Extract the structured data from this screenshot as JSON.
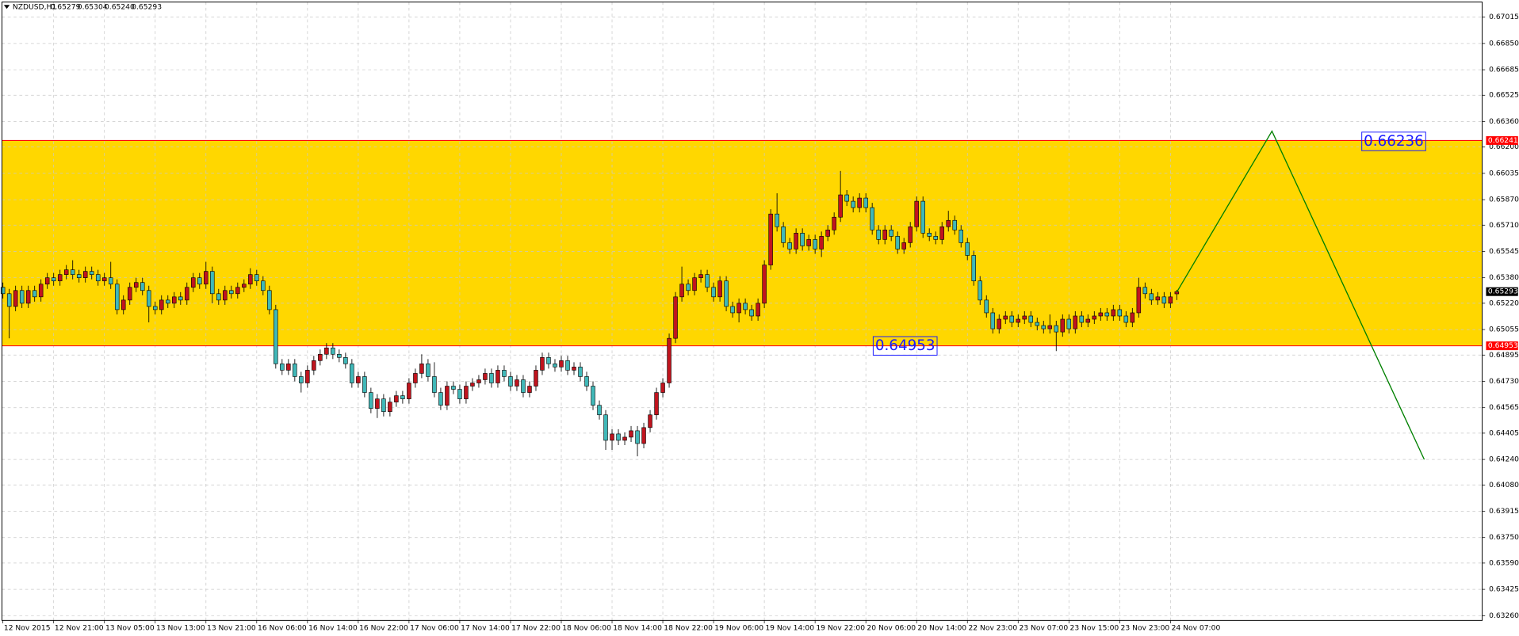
{
  "chart_data": {
    "type": "candlestick",
    "title": "NZDUSD,H1",
    "last_bar_labels": [
      "0.65279",
      "0.65304",
      "0.65240",
      "0.65293"
    ],
    "categories": [
      "12 Nov 2015",
      null,
      null,
      null,
      null,
      null,
      null,
      null,
      "12 Nov 21:00",
      null,
      null,
      null,
      null,
      null,
      null,
      null,
      "13 Nov 05:00",
      null,
      null,
      null,
      null,
      null,
      null,
      null,
      "13 Nov 13:00",
      null,
      null,
      null,
      null,
      null,
      null,
      null,
      "13 Nov 21:00",
      null,
      null,
      null,
      null,
      null,
      null,
      null,
      "16 Nov 06:00",
      null,
      null,
      null,
      null,
      null,
      null,
      null,
      "16 Nov 14:00",
      null,
      null,
      null,
      null,
      null,
      null,
      null,
      "16 Nov 22:00",
      null,
      null,
      null,
      null,
      null,
      null,
      null,
      "17 Nov 06:00",
      null,
      null,
      null,
      null,
      null,
      null,
      null,
      "17 Nov 14:00",
      null,
      null,
      null,
      null,
      null,
      null,
      null,
      "17 Nov 22:00",
      null,
      null,
      null,
      null,
      null,
      null,
      null,
      "18 Nov 06:00",
      null,
      null,
      null,
      null,
      null,
      null,
      null,
      "18 Nov 14:00",
      null,
      null,
      null,
      null,
      null,
      null,
      null,
      "18 Nov 22:00",
      null,
      null,
      null,
      null,
      null,
      null,
      null,
      "19 Nov 06:00",
      null,
      null,
      null,
      null,
      null,
      null,
      null,
      "19 Nov 14:00",
      null,
      null,
      null,
      null,
      null,
      null,
      null,
      "19 Nov 22:00",
      null,
      null,
      null,
      null,
      null,
      null,
      null,
      "20 Nov 06:00",
      null,
      null,
      null,
      null,
      null,
      null,
      null,
      "20 Nov 14:00",
      null,
      null,
      null,
      null,
      null,
      null,
      null,
      "22 Nov 23:00",
      null,
      null,
      null,
      null,
      null,
      null,
      null,
      "23 Nov 07:00",
      null,
      null,
      null,
      null,
      null,
      null,
      null,
      "23 Nov 15:00",
      null,
      null,
      null,
      null,
      null,
      null,
      null,
      "23 Nov 23:00",
      null,
      null,
      null,
      null,
      null,
      null,
      null,
      "24 Nov 07:00",
      null
    ],
    "candles": [
      [
        0.6532,
        0.6535,
        0.6525,
        0.6528
      ],
      [
        0.6528,
        0.6531,
        0.65,
        0.652
      ],
      [
        0.652,
        0.6533,
        0.6517,
        0.653
      ],
      [
        0.653,
        0.6533,
        0.6519,
        0.6522
      ],
      [
        0.6522,
        0.6533,
        0.6519,
        0.653
      ],
      [
        0.653,
        0.6533,
        0.6523,
        0.6526
      ],
      [
        0.6526,
        0.6537,
        0.6523,
        0.6534
      ],
      [
        0.6534,
        0.6541,
        0.6531,
        0.6538
      ],
      [
        0.6538,
        0.6541,
        0.6533,
        0.6536
      ],
      [
        0.6536,
        0.6543,
        0.6533,
        0.654
      ],
      [
        0.654,
        0.6546,
        0.6537,
        0.6543
      ],
      [
        0.6543,
        0.6549,
        0.6537,
        0.654
      ],
      [
        0.654,
        0.6543,
        0.6535,
        0.6538
      ],
      [
        0.6538,
        0.6545,
        0.6535,
        0.6542
      ],
      [
        0.6542,
        0.6545,
        0.6537,
        0.654
      ],
      [
        0.654,
        0.6543,
        0.6533,
        0.6536
      ],
      [
        0.6536,
        0.6541,
        0.6533,
        0.6538
      ],
      [
        0.6538,
        0.6548,
        0.6531,
        0.6534
      ],
      [
        0.6534,
        0.6537,
        0.6515,
        0.6518
      ],
      [
        0.6518,
        0.6527,
        0.6515,
        0.6524
      ],
      [
        0.6524,
        0.6535,
        0.6521,
        0.6532
      ],
      [
        0.6532,
        0.6538,
        0.6529,
        0.6535
      ],
      [
        0.6535,
        0.6538,
        0.6527,
        0.653
      ],
      [
        0.653,
        0.6533,
        0.651,
        0.652
      ],
      [
        0.652,
        0.6523,
        0.6515,
        0.6518
      ],
      [
        0.6518,
        0.6527,
        0.6515,
        0.6524
      ],
      [
        0.6524,
        0.6527,
        0.6519,
        0.6522
      ],
      [
        0.6522,
        0.6529,
        0.6519,
        0.6526
      ],
      [
        0.6526,
        0.6529,
        0.6521,
        0.6524
      ],
      [
        0.6524,
        0.6535,
        0.6521,
        0.6532
      ],
      [
        0.6532,
        0.6541,
        0.6529,
        0.6538
      ],
      [
        0.6538,
        0.6541,
        0.6531,
        0.6534
      ],
      [
        0.6534,
        0.6548,
        0.6531,
        0.6542
      ],
      [
        0.6542,
        0.6545,
        0.6522,
        0.6528
      ],
      [
        0.6528,
        0.6531,
        0.6521,
        0.6524
      ],
      [
        0.6524,
        0.6533,
        0.6521,
        0.653
      ],
      [
        0.653,
        0.6533,
        0.6525,
        0.6528
      ],
      [
        0.6528,
        0.6535,
        0.6525,
        0.6532
      ],
      [
        0.6532,
        0.6537,
        0.6529,
        0.6534
      ],
      [
        0.6534,
        0.6544,
        0.6531,
        0.654
      ],
      [
        0.654,
        0.6543,
        0.6533,
        0.6536
      ],
      [
        0.6536,
        0.6539,
        0.6527,
        0.653
      ],
      [
        0.653,
        0.6533,
        0.6515,
        0.6518
      ],
      [
        0.6518,
        0.6521,
        0.6481,
        0.6484
      ],
      [
        0.6484,
        0.6487,
        0.6477,
        0.648
      ],
      [
        0.648,
        0.6487,
        0.6477,
        0.6484
      ],
      [
        0.6484,
        0.6487,
        0.6473,
        0.6476
      ],
      [
        0.6476,
        0.6479,
        0.6466,
        0.6472
      ],
      [
        0.6472,
        0.6483,
        0.6469,
        0.648
      ],
      [
        0.648,
        0.6489,
        0.6477,
        0.6486
      ],
      [
        0.6486,
        0.6493,
        0.6483,
        0.649
      ],
      [
        0.649,
        0.6497,
        0.6487,
        0.6494
      ],
      [
        0.6494,
        0.6497,
        0.6487,
        0.649
      ],
      [
        0.649,
        0.6493,
        0.6485,
        0.6488
      ],
      [
        0.6488,
        0.6491,
        0.6481,
        0.6484
      ],
      [
        0.6484,
        0.6487,
        0.6469,
        0.6472
      ],
      [
        0.6472,
        0.6479,
        0.6469,
        0.6476
      ],
      [
        0.6476,
        0.6479,
        0.6463,
        0.6466
      ],
      [
        0.6466,
        0.6469,
        0.6453,
        0.6456
      ],
      [
        0.6456,
        0.6465,
        0.645,
        0.6462
      ],
      [
        0.6462,
        0.6465,
        0.6451,
        0.6454
      ],
      [
        0.6454,
        0.6463,
        0.6451,
        0.646
      ],
      [
        0.646,
        0.6467,
        0.6457,
        0.6464
      ],
      [
        0.6464,
        0.6467,
        0.6459,
        0.6462
      ],
      [
        0.6462,
        0.6475,
        0.6459,
        0.6472
      ],
      [
        0.6472,
        0.6481,
        0.6469,
        0.6478
      ],
      [
        0.6478,
        0.649,
        0.6475,
        0.6484
      ],
      [
        0.6484,
        0.6487,
        0.6473,
        0.6476
      ],
      [
        0.6476,
        0.6485,
        0.6463,
        0.6466
      ],
      [
        0.6466,
        0.6469,
        0.6455,
        0.6458
      ],
      [
        0.6458,
        0.6473,
        0.6455,
        0.647
      ],
      [
        0.647,
        0.6473,
        0.6465,
        0.6468
      ],
      [
        0.6468,
        0.6471,
        0.6459,
        0.6462
      ],
      [
        0.6462,
        0.6473,
        0.6459,
        0.647
      ],
      [
        0.647,
        0.6475,
        0.6467,
        0.6472
      ],
      [
        0.6472,
        0.6477,
        0.6469,
        0.6474
      ],
      [
        0.6474,
        0.6481,
        0.6471,
        0.6478
      ],
      [
        0.6478,
        0.6481,
        0.6469,
        0.6472
      ],
      [
        0.6472,
        0.6483,
        0.6469,
        0.648
      ],
      [
        0.648,
        0.6483,
        0.6473,
        0.6476
      ],
      [
        0.6476,
        0.6479,
        0.6467,
        0.647
      ],
      [
        0.647,
        0.6477,
        0.6467,
        0.6474
      ],
      [
        0.6474,
        0.6477,
        0.6463,
        0.6466
      ],
      [
        0.6466,
        0.6473,
        0.6463,
        0.647
      ],
      [
        0.647,
        0.6483,
        0.6467,
        0.648
      ],
      [
        0.648,
        0.6491,
        0.6477,
        0.6488
      ],
      [
        0.6488,
        0.6491,
        0.6481,
        0.6484
      ],
      [
        0.6484,
        0.6487,
        0.6479,
        0.6482
      ],
      [
        0.6482,
        0.6489,
        0.6479,
        0.6486
      ],
      [
        0.6486,
        0.6489,
        0.6477,
        0.648
      ],
      [
        0.648,
        0.6485,
        0.6477,
        0.6482
      ],
      [
        0.6482,
        0.6485,
        0.6473,
        0.6476
      ],
      [
        0.6476,
        0.6479,
        0.6467,
        0.647
      ],
      [
        0.647,
        0.6473,
        0.6455,
        0.6458
      ],
      [
        0.6458,
        0.6461,
        0.6449,
        0.6452
      ],
      [
        0.6452,
        0.6455,
        0.643,
        0.6436
      ],
      [
        0.6436,
        0.6443,
        0.643,
        0.644
      ],
      [
        0.644,
        0.6443,
        0.6433,
        0.6436
      ],
      [
        0.6436,
        0.6441,
        0.6433,
        0.6438
      ],
      [
        0.6438,
        0.6445,
        0.6435,
        0.6442
      ],
      [
        0.6442,
        0.6445,
        0.6426,
        0.6434
      ],
      [
        0.6434,
        0.6447,
        0.6431,
        0.6444
      ],
      [
        0.6444,
        0.6455,
        0.6441,
        0.6452
      ],
      [
        0.6452,
        0.6469,
        0.6449,
        0.6466
      ],
      [
        0.6466,
        0.6475,
        0.6463,
        0.6472
      ],
      [
        0.6472,
        0.6503,
        0.6469,
        0.65
      ],
      [
        0.65,
        0.6529,
        0.6497,
        0.6526
      ],
      [
        0.6526,
        0.6545,
        0.6523,
        0.6534
      ],
      [
        0.6534,
        0.6537,
        0.6527,
        0.653
      ],
      [
        0.653,
        0.6541,
        0.6527,
        0.6538
      ],
      [
        0.6538,
        0.6543,
        0.6535,
        0.654
      ],
      [
        0.654,
        0.6543,
        0.6529,
        0.6532
      ],
      [
        0.6532,
        0.6535,
        0.6523,
        0.6526
      ],
      [
        0.6526,
        0.6539,
        0.6523,
        0.6536
      ],
      [
        0.6536,
        0.6539,
        0.6517,
        0.652
      ],
      [
        0.652,
        0.6523,
        0.6513,
        0.6516
      ],
      [
        0.6516,
        0.6525,
        0.651,
        0.6522
      ],
      [
        0.6522,
        0.6525,
        0.6515,
        0.6518
      ],
      [
        0.6518,
        0.6521,
        0.6511,
        0.6514
      ],
      [
        0.6514,
        0.6525,
        0.6511,
        0.6522
      ],
      [
        0.6522,
        0.6549,
        0.6519,
        0.6546
      ],
      [
        0.6546,
        0.6581,
        0.6543,
        0.6578
      ],
      [
        0.6578,
        0.6591,
        0.6567,
        0.657
      ],
      [
        0.657,
        0.6573,
        0.6557,
        0.656
      ],
      [
        0.656,
        0.6563,
        0.6553,
        0.6556
      ],
      [
        0.6556,
        0.6569,
        0.6553,
        0.6566
      ],
      [
        0.6566,
        0.6569,
        0.6555,
        0.6558
      ],
      [
        0.6558,
        0.6565,
        0.6555,
        0.6562
      ],
      [
        0.6562,
        0.6565,
        0.6553,
        0.6556
      ],
      [
        0.6556,
        0.6567,
        0.6551,
        0.6564
      ],
      [
        0.6564,
        0.6571,
        0.6561,
        0.6568
      ],
      [
        0.6568,
        0.6579,
        0.6565,
        0.6576
      ],
      [
        0.6576,
        0.6605,
        0.6573,
        0.659
      ],
      [
        0.659,
        0.6593,
        0.6583,
        0.6586
      ],
      [
        0.6586,
        0.6589,
        0.6579,
        0.6582
      ],
      [
        0.6582,
        0.6591,
        0.6579,
        0.6588
      ],
      [
        0.6588,
        0.6591,
        0.6579,
        0.6582
      ],
      [
        0.6582,
        0.6585,
        0.6565,
        0.6568
      ],
      [
        0.6568,
        0.6571,
        0.6559,
        0.6562
      ],
      [
        0.6562,
        0.6571,
        0.6559,
        0.6568
      ],
      [
        0.6568,
        0.6571,
        0.6561,
        0.6564
      ],
      [
        0.6564,
        0.6567,
        0.6553,
        0.6556
      ],
      [
        0.6556,
        0.6563,
        0.6553,
        0.656
      ],
      [
        0.656,
        0.6573,
        0.6557,
        0.657
      ],
      [
        0.657,
        0.6589,
        0.6567,
        0.6586
      ],
      [
        0.6586,
        0.6589,
        0.6563,
        0.6566
      ],
      [
        0.6566,
        0.6569,
        0.6561,
        0.6564
      ],
      [
        0.6564,
        0.6567,
        0.6559,
        0.6562
      ],
      [
        0.6562,
        0.6573,
        0.6559,
        0.657
      ],
      [
        0.657,
        0.658,
        0.6567,
        0.6574
      ],
      [
        0.6574,
        0.6577,
        0.6565,
        0.6568
      ],
      [
        0.6568,
        0.6571,
        0.6557,
        0.656
      ],
      [
        0.656,
        0.6563,
        0.6549,
        0.6552
      ],
      [
        0.6552,
        0.6555,
        0.6533,
        0.6536
      ],
      [
        0.6536,
        0.6539,
        0.6521,
        0.6524
      ],
      [
        0.6524,
        0.6527,
        0.6513,
        0.6516
      ],
      [
        0.6516,
        0.6519,
        0.6503,
        0.6506
      ],
      [
        0.6506,
        0.6515,
        0.6503,
        0.6512
      ],
      [
        0.6512,
        0.6517,
        0.6509,
        0.6514
      ],
      [
        0.6514,
        0.6517,
        0.6507,
        0.651
      ],
      [
        0.651,
        0.6515,
        0.6507,
        0.6512
      ],
      [
        0.6512,
        0.6517,
        0.6509,
        0.6514
      ],
      [
        0.6514,
        0.6517,
        0.6507,
        0.651
      ],
      [
        0.651,
        0.6513,
        0.6505,
        0.6508
      ],
      [
        0.6508,
        0.6511,
        0.6503,
        0.6506
      ],
      [
        0.6506,
        0.6515,
        0.6503,
        0.6508
      ],
      [
        0.6508,
        0.6511,
        0.6492,
        0.6504
      ],
      [
        0.6504,
        0.6515,
        0.6501,
        0.6512
      ],
      [
        0.6512,
        0.6515,
        0.6503,
        0.6506
      ],
      [
        0.6506,
        0.6517,
        0.6503,
        0.6514
      ],
      [
        0.6514,
        0.6517,
        0.6507,
        0.651
      ],
      [
        0.651,
        0.6515,
        0.6507,
        0.6512
      ],
      [
        0.6512,
        0.6517,
        0.6509,
        0.6514
      ],
      [
        0.6514,
        0.6519,
        0.6511,
        0.6516
      ],
      [
        0.6516,
        0.6519,
        0.6511,
        0.6514
      ],
      [
        0.6514,
        0.6521,
        0.6511,
        0.6518
      ],
      [
        0.6518,
        0.6521,
        0.6511,
        0.6514
      ],
      [
        0.6514,
        0.6517,
        0.6507,
        0.651
      ],
      [
        0.651,
        0.6519,
        0.6507,
        0.6516
      ],
      [
        0.6516,
        0.6538,
        0.6513,
        0.6532
      ],
      [
        0.6532,
        0.6535,
        0.6525,
        0.6528
      ],
      [
        0.6528,
        0.6531,
        0.6521,
        0.6524
      ],
      [
        0.6524,
        0.6529,
        0.6521,
        0.6526
      ],
      [
        0.6526,
        0.6529,
        0.6519,
        0.6522
      ],
      [
        0.6522,
        0.6529,
        0.6519,
        0.6526
      ],
      [
        0.65279,
        0.65304,
        0.6524,
        0.65293
      ]
    ],
    "colors": {
      "up": "#c0141e",
      "down": "#40b8b8",
      "wick": "#000000"
    },
    "ylim": [
      0.6323,
      0.6711
    ],
    "yticks": [
      0.67015,
      {
        "value": 0.6685,
        "label": "0.66850"
      },
      0.66685,
      0.66525,
      {
        "value": 0.6636,
        "label": "0.66360"
      },
      {
        "value": 0.662,
        "label": "0.66200"
      },
      0.66035,
      {
        "value": 0.6587,
        "label": "0.65870"
      },
      {
        "value": 0.6571,
        "label": "0.65710"
      },
      0.65545,
      {
        "value": 0.6538,
        "label": "0.65380"
      },
      {
        "value": 0.6522,
        "label": "0.65220"
      },
      0.65055,
      0.64895,
      {
        "value": 0.6473,
        "label": "0.64730"
      },
      0.64565,
      0.64405,
      {
        "value": 0.6424,
        "label": "0.64240"
      },
      {
        "value": 0.6408,
        "label": "0.64080"
      },
      0.63915,
      {
        "value": 0.6375,
        "label": "0.63750"
      },
      {
        "value": 0.6359,
        "label": "0.63590"
      },
      0.63425,
      {
        "value": 0.6326,
        "label": "0.63260"
      }
    ],
    "grid": true,
    "zone": {
      "high": 0.66241,
      "low": 0.64953,
      "color": "#ffd700",
      "line_color": "#ff0000"
    },
    "annotations": [
      {
        "x": 214,
        "value": 0.66236
      },
      {
        "x": 137,
        "value": 0.64953
      }
    ],
    "zigzag": {
      "x": [
        185,
        200,
        224
      ],
      "values": [
        0.6529,
        0.663,
        0.6424
      ],
      "color": "#008000"
    }
  }
}
